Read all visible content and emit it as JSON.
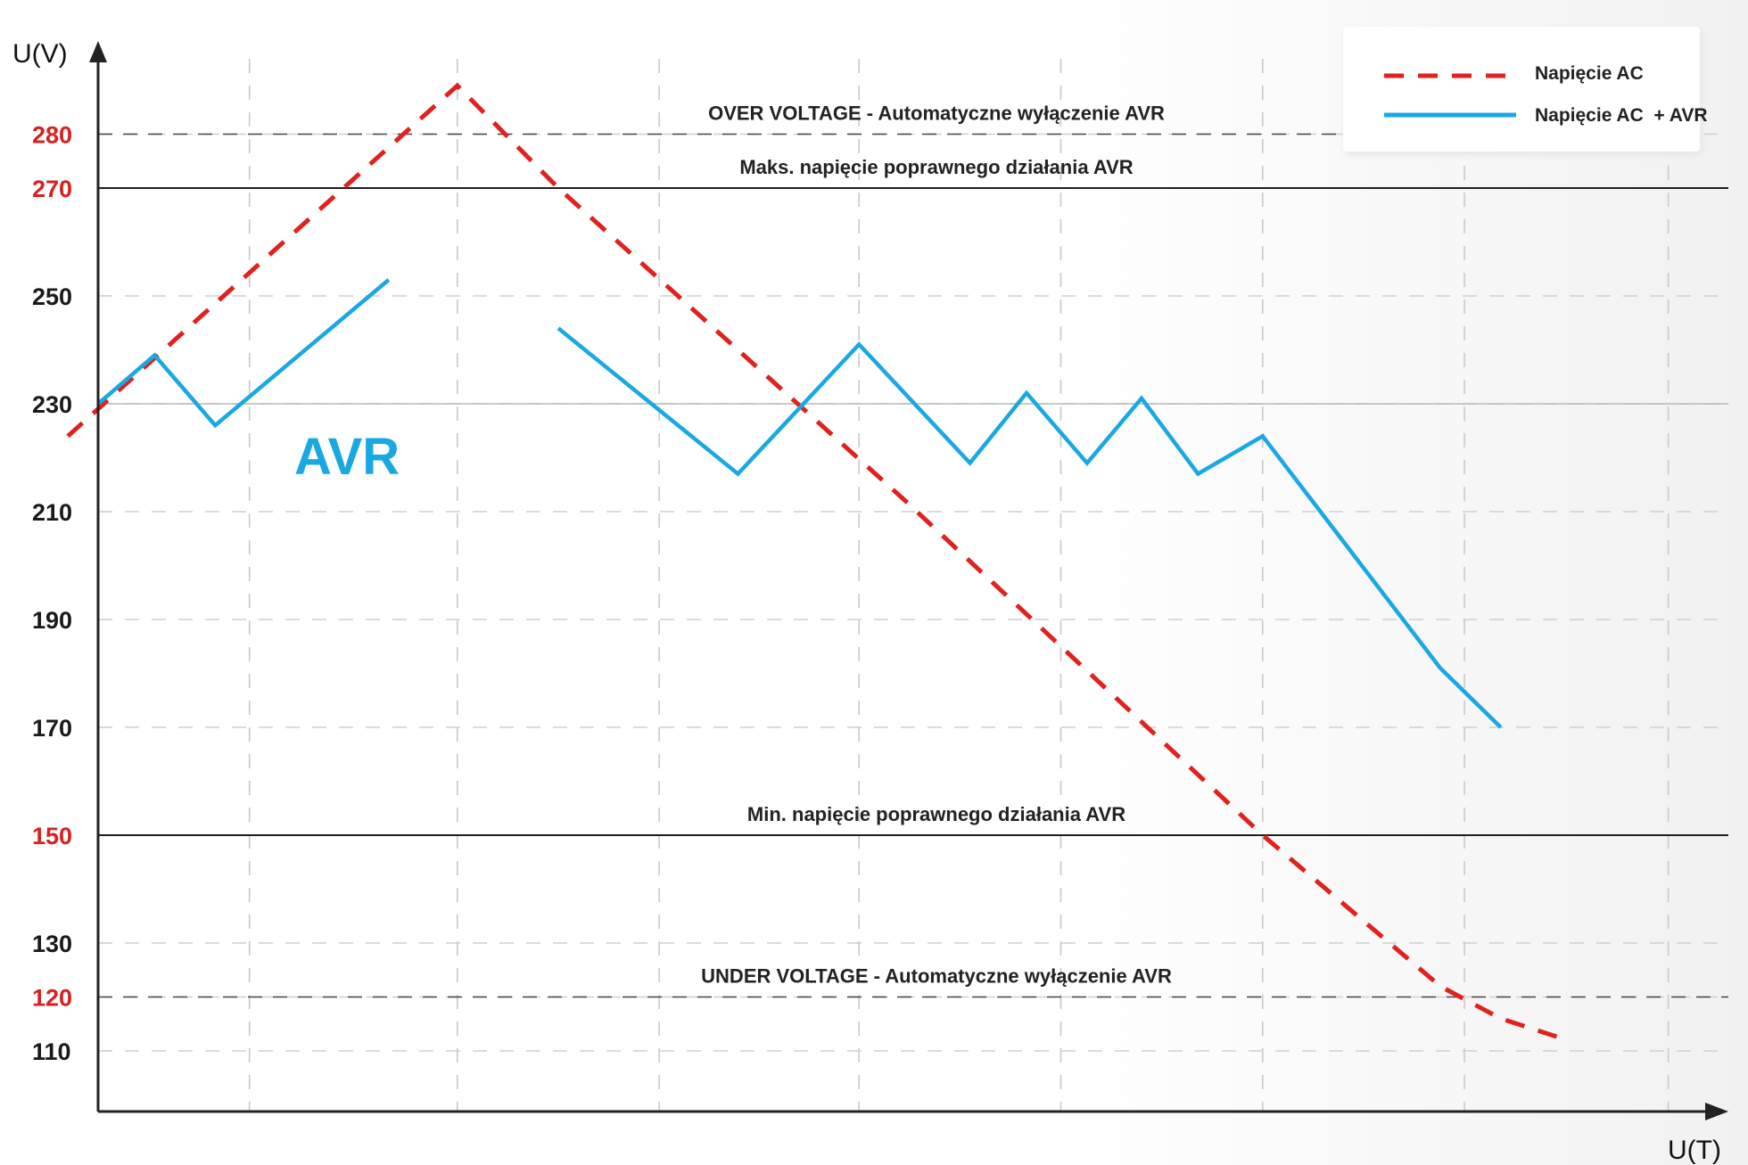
{
  "chart_data": {
    "type": "line",
    "xlabel": "U(T)",
    "ylabel": "U(V)",
    "x_range": [
      0,
      8
    ],
    "ylim": [
      98,
      292
    ],
    "grid": true,
    "legend_position": "top-right",
    "annotation_text": "AVR",
    "colors": {
      "ac": "#e0211d",
      "avr": "#1aa8e3",
      "highlight_tick": "#d9201f",
      "normal_tick": "#1a1a1a",
      "axis": "#222222"
    },
    "y_ticks": [
      {
        "value": 280,
        "label": "280",
        "highlight": true
      },
      {
        "value": 270,
        "label": "270",
        "highlight": true
      },
      {
        "value": 250,
        "label": "250",
        "highlight": false
      },
      {
        "value": 230,
        "label": "230",
        "highlight": false
      },
      {
        "value": 210,
        "label": "210",
        "highlight": false
      },
      {
        "value": 190,
        "label": "190",
        "highlight": false
      },
      {
        "value": 170,
        "label": "170",
        "highlight": false
      },
      {
        "value": 150,
        "label": "150",
        "highlight": true
      },
      {
        "value": 130,
        "label": "130",
        "highlight": false
      },
      {
        "value": 120,
        "label": "120",
        "highlight": true
      },
      {
        "value": 110,
        "label": "110",
        "highlight": false
      }
    ],
    "x_gridlines": [
      0.75,
      1.78,
      2.78,
      3.77,
      4.77,
      5.77,
      6.77,
      7.78
    ],
    "y_gridlines": [
      280,
      250,
      230,
      210,
      190,
      170,
      130,
      120,
      110
    ],
    "reference_lines": [
      {
        "value": 280,
        "label": "OVER VOLTAGE - Automatyczne wyłączenie AVR",
        "style": "dashed"
      },
      {
        "value": 270,
        "label": "Maks. napięcie poprawnego działania AVR",
        "style": "solid"
      },
      {
        "value": 230,
        "label": "",
        "style": "thin"
      },
      {
        "value": 150,
        "label": "Min. napięcie poprawnego działania AVR",
        "style": "solid"
      },
      {
        "value": 120,
        "label": "UNDER VOLTAGE - Automatyczne wyłączenie AVR",
        "style": "dashed"
      }
    ],
    "series": [
      {
        "name": "Napięcie AC",
        "style": "dashed",
        "segments": [
          [
            [
              -0.15,
              224
            ],
            [
              1.78,
              289
            ],
            [
              2.28,
              270
            ],
            [
              4.0,
              212
            ],
            [
              5.77,
              150
            ],
            [
              6.65,
              122
            ],
            [
              6.95,
              116
            ],
            [
              7.28,
              112
            ]
          ]
        ]
      },
      {
        "name": "Napięcie AC  + AVR",
        "style": "solid",
        "segments": [
          [
            [
              0,
              230
            ],
            [
              0.28,
              239
            ],
            [
              0.58,
              226
            ],
            [
              1.44,
              253
            ]
          ],
          [
            [
              2.28,
              244
            ],
            [
              3.17,
              217
            ],
            [
              3.77,
              241
            ],
            [
              4.32,
              219
            ],
            [
              4.6,
              232
            ],
            [
              4.9,
              219
            ],
            [
              5.17,
              231
            ],
            [
              5.45,
              217
            ],
            [
              5.77,
              224
            ],
            [
              6.65,
              181
            ],
            [
              6.95,
              170
            ]
          ]
        ]
      }
    ]
  }
}
